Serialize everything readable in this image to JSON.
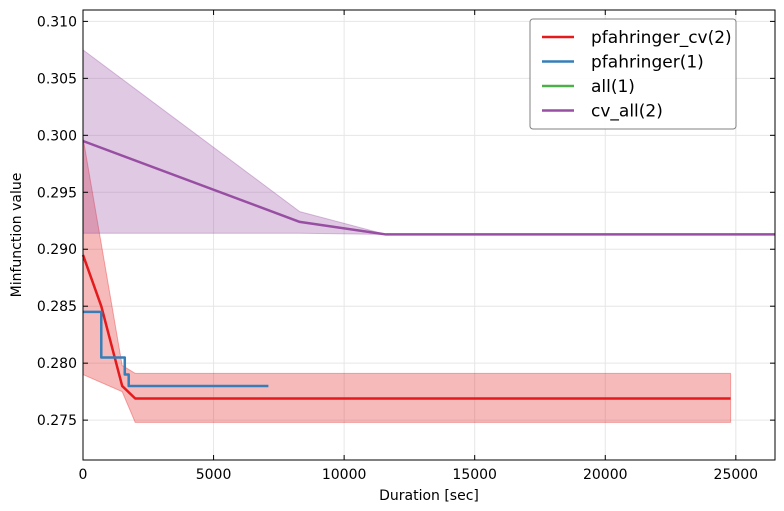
{
  "chart_data": {
    "type": "line",
    "title": "",
    "xlabel": "Duration [sec]",
    "ylabel": "Minfunction value",
    "xlim": [
      0,
      26500
    ],
    "ylim": [
      0.2715,
      0.311
    ],
    "xticks": [
      0,
      5000,
      10000,
      15000,
      20000,
      25000
    ],
    "xtick_labels": [
      "0",
      "5000",
      "10000",
      "15000",
      "20000",
      "25000"
    ],
    "yticks": [
      0.275,
      0.28,
      0.285,
      0.29,
      0.295,
      0.3,
      0.305,
      0.31
    ],
    "ytick_labels": [
      "0.275",
      "0.280",
      "0.285",
      "0.290",
      "0.295",
      "0.300",
      "0.305",
      "0.310"
    ],
    "grid": true,
    "legend_position": "top-right",
    "series": [
      {
        "name": "pfahringer_cv(2)",
        "color": "#e41a1c",
        "step": false,
        "x": [
          0,
          700,
          1500,
          2000,
          24800
        ],
        "y": [
          0.2895,
          0.285,
          0.278,
          0.2769,
          0.2769
        ],
        "band": {
          "x": [
            0,
            1500,
            2000,
            24800
          ],
          "upper": [
            0.2998,
            0.2798,
            0.2791,
            0.2791
          ],
          "lower": [
            0.279,
            0.2775,
            0.2748,
            0.2748
          ]
        }
      },
      {
        "name": "pfahringer(1)",
        "color": "#377eb8",
        "step": true,
        "x": [
          0,
          700,
          1600,
          1750,
          7100
        ],
        "y": [
          0.2845,
          0.2805,
          0.279,
          0.278,
          0.278
        ],
        "band": null
      },
      {
        "name": "all(1)",
        "color": "#4daf4a",
        "step": false,
        "x": [],
        "y": [],
        "band": null
      },
      {
        "name": "cv_all(2)",
        "color": "#984ea3",
        "step": false,
        "x": [
          0,
          8300,
          11600,
          26500
        ],
        "y": [
          0.2995,
          0.2924,
          0.2913,
          0.2913
        ],
        "band": {
          "x": [
            0,
            8300,
            11600,
            26500
          ],
          "upper": [
            0.3075,
            0.2933,
            0.2913,
            0.2913
          ],
          "lower": [
            0.2914,
            0.2914,
            0.2913,
            0.2913
          ]
        }
      }
    ]
  }
}
